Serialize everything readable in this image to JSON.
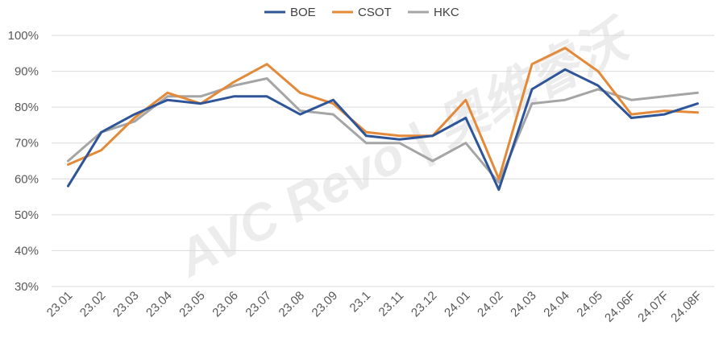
{
  "chart_data": {
    "type": "line",
    "title": "",
    "xlabel": "",
    "ylabel": "",
    "ylim": [
      30,
      100
    ],
    "y_ticks": [
      "30%",
      "40%",
      "50%",
      "60%",
      "70%",
      "80%",
      "90%",
      "100%"
    ],
    "y_tick_values": [
      30,
      40,
      50,
      60,
      70,
      80,
      90,
      100
    ],
    "grid": "horizontal",
    "legend_position": "top-center",
    "categories": [
      "23.01",
      "23.02",
      "23.03",
      "23.04",
      "23.05",
      "23.06",
      "23.07",
      "23.08",
      "23.09",
      "23.1",
      "23.11",
      "23.12",
      "24.01",
      "24.02",
      "24.03",
      "24.04",
      "24.05",
      "24.06F",
      "24.07F",
      "24.08F"
    ],
    "series": [
      {
        "name": "BOE",
        "color": "#2e5597",
        "values": [
          58,
          73,
          78,
          82,
          81,
          83,
          83,
          78,
          82,
          72,
          71,
          72,
          77,
          57,
          85,
          90.5,
          86,
          77,
          78,
          81
        ]
      },
      {
        "name": "CSOT",
        "color": "#e38a3a",
        "values": [
          64,
          68,
          77,
          84,
          81,
          87,
          92,
          84,
          81,
          73,
          72,
          72,
          82,
          60,
          92,
          96.5,
          90,
          78,
          79,
          78.5
        ]
      },
      {
        "name": "HKC",
        "color": "#a5a5a5",
        "values": [
          65,
          73,
          76,
          83,
          83,
          86,
          88,
          79,
          78,
          70,
          70,
          65,
          70,
          59,
          81,
          82,
          85,
          82,
          83,
          84
        ]
      }
    ],
    "watermark": "AVC Revo | 奥维睿沃"
  }
}
